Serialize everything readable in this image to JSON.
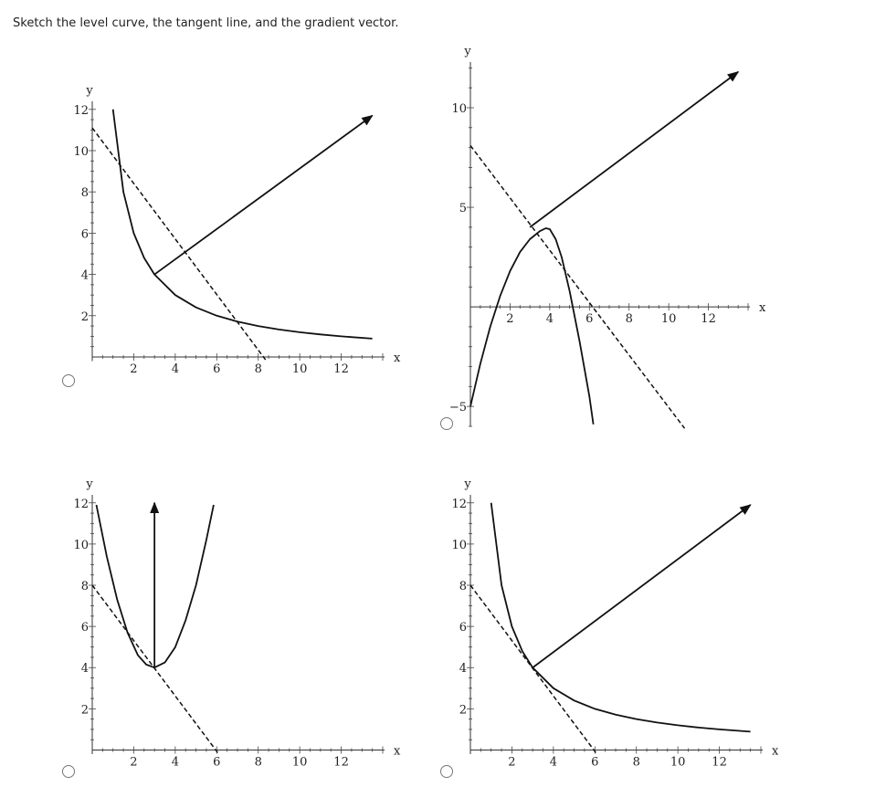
{
  "prompt": "Sketch the level curve, the tangent line, and the gradient vector.",
  "options": [
    {
      "id": "a",
      "chart_data": {
        "type": "line",
        "title": "",
        "xlabel": "x",
        "ylabel": "y",
        "xlim": [
          0,
          14
        ],
        "ylim": [
          -0.2,
          12.3
        ],
        "xticks": [
          "2",
          "4",
          "6",
          "8",
          "10",
          "12"
        ],
        "yticks": [
          "2",
          "4",
          "6",
          "8",
          "10",
          "12"
        ],
        "series": [
          {
            "style": "solid",
            "points": [
              [
                1.0,
                12
              ],
              [
                1.5,
                8
              ],
              [
                2,
                6
              ],
              [
                2.5,
                4.8
              ],
              [
                3,
                4
              ],
              [
                4,
                3
              ],
              [
                5,
                2.4
              ],
              [
                6,
                2
              ],
              [
                7,
                1.714
              ],
              [
                8,
                1.5
              ],
              [
                9,
                1.333
              ],
              [
                10,
                1.2
              ],
              [
                11,
                1.09
              ],
              [
                12,
                1.0
              ],
              [
                13.5,
                0.889
              ]
            ]
          },
          {
            "style": "dashed",
            "points": [
              [
                0,
                11.1
              ],
              [
                8.4,
                -0.2
              ]
            ]
          }
        ],
        "arrow": {
          "from": [
            3,
            4
          ],
          "to": [
            13.5,
            11.7
          ]
        }
      }
    },
    {
      "id": "b",
      "chart_data": {
        "type": "line",
        "title": "",
        "xlabel": "x",
        "ylabel": "y",
        "xlim": [
          0,
          14
        ],
        "ylim": [
          -6,
          12.2
        ],
        "xticks": [
          "2",
          "4",
          "6",
          "8",
          "10",
          "12"
        ],
        "yticks": [
          "-5",
          "5",
          "10"
        ],
        "series": [
          {
            "style": "solid",
            "points": [
              [
                0,
                -5
              ],
              [
                0.5,
                -2.85
              ],
              [
                1,
                -1
              ],
              [
                1.5,
                0.55
              ],
              [
                2,
                1.8
              ],
              [
                2.5,
                2.75
              ],
              [
                3,
                3.4
              ],
              [
                3.5,
                3.8
              ],
              [
                3.8,
                3.95
              ],
              [
                4,
                3.9
              ],
              [
                4.3,
                3.4
              ],
              [
                4.6,
                2.5
              ],
              [
                5,
                0.8
              ],
              [
                5.5,
                -1.7
              ],
              [
                6,
                -4.5
              ],
              [
                6.2,
                -5.9
              ]
            ]
          },
          {
            "style": "dashed",
            "points": [
              [
                0,
                8.1
              ],
              [
                10.8,
                -6.1
              ]
            ]
          }
        ],
        "arrow": {
          "from": [
            3,
            4
          ],
          "to": [
            13.5,
            11.8
          ]
        }
      }
    },
    {
      "id": "c",
      "chart_data": {
        "type": "line",
        "title": "",
        "xlabel": "x",
        "ylabel": "y",
        "xlim": [
          0,
          14
        ],
        "ylim": [
          -0.2,
          12.3
        ],
        "xticks": [
          "2",
          "4",
          "6",
          "8",
          "10",
          "12"
        ],
        "yticks": [
          "2",
          "4",
          "6",
          "8",
          "10",
          "12"
        ],
        "series": [
          {
            "style": "solid",
            "points": [
              [
                0.2,
                11.9
              ],
              [
                0.7,
                9.4
              ],
              [
                1.2,
                7.3
              ],
              [
                1.7,
                5.7
              ],
              [
                2.2,
                4.6
              ],
              [
                2.6,
                4.15
              ],
              [
                3,
                4
              ],
              [
                3.5,
                4.25
              ],
              [
                4,
                5.0
              ],
              [
                4.5,
                6.3
              ],
              [
                5,
                8.0
              ],
              [
                5.5,
                10.2
              ],
              [
                5.85,
                11.9
              ]
            ]
          },
          {
            "style": "dashed",
            "points": [
              [
                0,
                8
              ],
              [
                6.1,
                -0.2
              ]
            ]
          }
        ],
        "arrow": {
          "from": [
            3,
            4
          ],
          "to": [
            3,
            12
          ]
        }
      }
    },
    {
      "id": "d",
      "chart_data": {
        "type": "line",
        "title": "",
        "xlabel": "x",
        "ylabel": "y",
        "xlim": [
          0,
          14
        ],
        "ylim": [
          -0.2,
          12.3
        ],
        "xticks": [
          "2",
          "4",
          "6",
          "8",
          "10",
          "12"
        ],
        "yticks": [
          "2",
          "4",
          "6",
          "8",
          "10",
          "12"
        ],
        "series": [
          {
            "style": "solid",
            "points": [
              [
                1.0,
                12
              ],
              [
                1.5,
                8
              ],
              [
                2,
                6
              ],
              [
                2.5,
                4.8
              ],
              [
                3,
                4
              ],
              [
                4,
                3
              ],
              [
                5,
                2.4
              ],
              [
                6,
                2
              ],
              [
                7,
                1.714
              ],
              [
                8,
                1.5
              ],
              [
                9,
                1.333
              ],
              [
                10,
                1.2
              ],
              [
                11,
                1.09
              ],
              [
                12,
                1.0
              ],
              [
                13.5,
                0.889
              ]
            ]
          },
          {
            "style": "dashed",
            "points": [
              [
                0,
                8
              ],
              [
                6.1,
                -0.2
              ]
            ]
          }
        ],
        "arrow": {
          "from": [
            3,
            4
          ],
          "to": [
            13.5,
            11.9
          ]
        }
      }
    }
  ]
}
